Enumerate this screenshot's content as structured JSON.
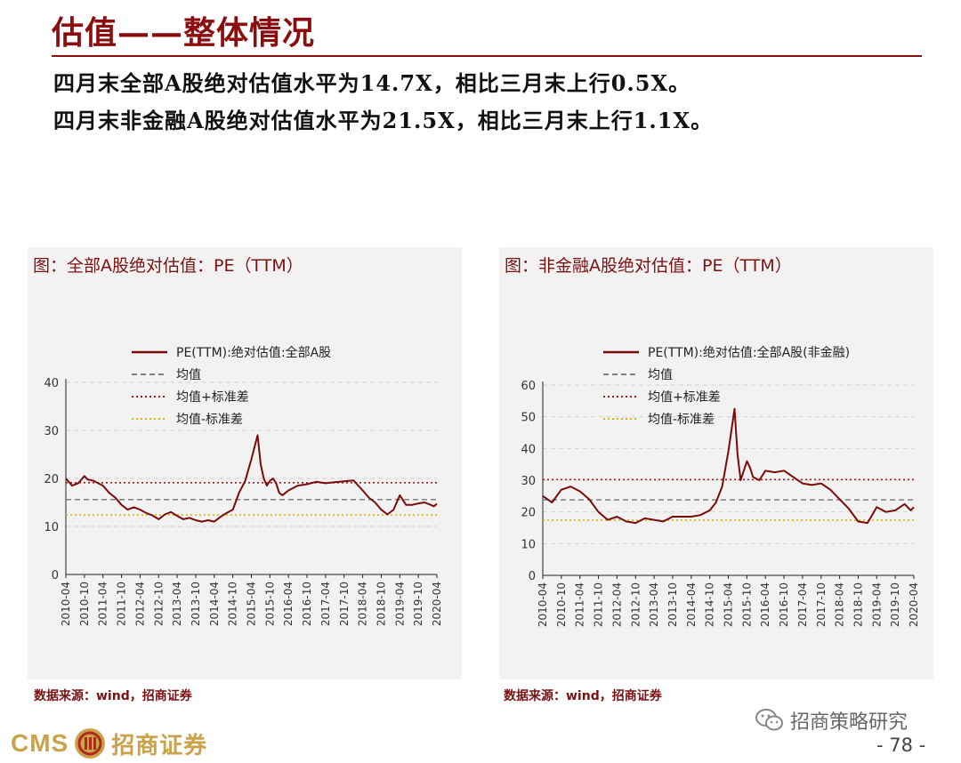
{
  "page": {
    "title": "估值——整体情况",
    "summary_lines": [
      "四月末全部A股绝对估值水平为14.7X，相比三月末上行0.5X。",
      "四月末非金融A股绝对估值水平为21.5X，相比三月末上行1.1X。"
    ],
    "sources": [
      "数据来源：wind，招商证券",
      "数据来源：wind，招商证券"
    ],
    "logo": {
      "cms": "CMS",
      "name": "招商证券"
    },
    "wechat_label": "招商策略研究",
    "page_number": "- 78 -"
  },
  "colors": {
    "brand_red": "#8b0d0d",
    "series_line": "#7b0b0b",
    "mean_line": "#808080",
    "upper_band": "#a01c1c",
    "lower_band": "#e0b400",
    "grid": "#d3d3d3",
    "panel_bg": "#f2f2f2",
    "logo_gold": "#c9a24a"
  },
  "icons": {
    "wechat": "wechat-icon",
    "logo_mark": "cms-logo-mark-icon"
  },
  "chart_data": [
    {
      "type": "line",
      "title": "图：全部A股绝对估值：PE（TTM）",
      "ylim": [
        0,
        40
      ],
      "yticks": [
        0,
        10,
        20,
        30,
        40
      ],
      "x_range": [
        "2010-04",
        "2020-04"
      ],
      "xticks": [
        "2010-04",
        "2010-10",
        "2011-04",
        "2011-10",
        "2012-04",
        "2012-10",
        "2013-04",
        "2013-10",
        "2014-04",
        "2014-10",
        "2015-04",
        "2015-10",
        "2016-04",
        "2016-10",
        "2017-04",
        "2017-10",
        "2018-04",
        "2018-10",
        "2019-04",
        "2019-10",
        "2020-04"
      ],
      "grid": true,
      "legend_position": "top-center",
      "series": [
        {
          "name": "PE(TTM):绝对估值:全部A股",
          "style": "solid",
          "x": [
            "2010-04",
            "2010-06",
            "2010-08",
            "2010-10",
            "2010-11",
            "2011-01",
            "2011-04",
            "2011-06",
            "2011-08",
            "2011-10",
            "2011-12",
            "2012-02",
            "2012-04",
            "2012-06",
            "2012-08",
            "2012-10",
            "2012-12",
            "2013-02",
            "2013-04",
            "2013-06",
            "2013-08",
            "2013-10",
            "2013-12",
            "2014-02",
            "2014-04",
            "2014-06",
            "2014-08",
            "2014-10",
            "2014-12",
            "2015-02",
            "2015-04",
            "2015-06",
            "2015-07",
            "2015-08",
            "2015-09",
            "2015-10",
            "2015-11",
            "2015-12",
            "2016-01",
            "2016-02",
            "2016-04",
            "2016-07",
            "2016-10",
            "2017-01",
            "2017-04",
            "2017-07",
            "2017-10",
            "2018-01",
            "2018-04",
            "2018-06",
            "2018-08",
            "2018-10",
            "2018-12",
            "2019-02",
            "2019-04",
            "2019-06",
            "2019-08",
            "2019-10",
            "2019-12",
            "2020-02",
            "2020-03",
            "2020-04"
          ],
          "y": [
            20,
            18.5,
            19,
            20.5,
            19.8,
            19.5,
            18.5,
            17,
            16,
            14.5,
            13.5,
            14,
            13.5,
            12.8,
            12.3,
            11.5,
            12.5,
            13,
            12.2,
            11.5,
            11.8,
            11.3,
            11,
            11.3,
            11,
            12,
            12.8,
            13.5,
            17,
            19.5,
            24,
            29,
            23,
            20,
            18.5,
            19.5,
            20,
            19,
            17,
            16.5,
            17.5,
            18.5,
            18.8,
            19.3,
            19,
            19.2,
            19.4,
            19.6,
            17.5,
            16,
            15,
            13.5,
            12.5,
            13.5,
            16.5,
            14.5,
            14.5,
            14.8,
            15,
            14.5,
            14.2,
            14.7
          ]
        },
        {
          "name": "均值",
          "style": "dashed",
          "value": 15.6
        },
        {
          "name": "均值+标准差",
          "style": "dotted",
          "value": 19.1
        },
        {
          "name": "均值-标准差",
          "style": "dotted",
          "value": 12.4
        }
      ]
    },
    {
      "type": "line",
      "title": "图：非金融A股绝对估值：PE（TTM）",
      "ylim": [
        0,
        60
      ],
      "yticks": [
        0,
        10,
        20,
        30,
        40,
        50,
        60
      ],
      "x_range": [
        "2010-04",
        "2020-04"
      ],
      "xticks": [
        "2010-04",
        "2010-10",
        "2011-04",
        "2011-10",
        "2012-04",
        "2012-10",
        "2013-04",
        "2013-10",
        "2014-04",
        "2014-10",
        "2015-04",
        "2015-10",
        "2016-04",
        "2016-10",
        "2017-04",
        "2017-10",
        "2018-04",
        "2018-10",
        "2019-04",
        "2019-10",
        "2020-04"
      ],
      "grid": true,
      "legend_position": "top-center",
      "series": [
        {
          "name": "PE(TTM):绝对估值:全部A股(非金融)",
          "style": "solid",
          "x": [
            "2010-04",
            "2010-07",
            "2010-10",
            "2011-01",
            "2011-04",
            "2011-07",
            "2011-10",
            "2012-01",
            "2012-04",
            "2012-07",
            "2012-10",
            "2013-01",
            "2013-04",
            "2013-07",
            "2013-10",
            "2014-01",
            "2014-04",
            "2014-07",
            "2014-10",
            "2014-12",
            "2015-02",
            "2015-04",
            "2015-06",
            "2015-07",
            "2015-08",
            "2015-09",
            "2015-10",
            "2015-11",
            "2015-12",
            "2016-02",
            "2016-04",
            "2016-07",
            "2016-10",
            "2017-01",
            "2017-04",
            "2017-07",
            "2017-10",
            "2018-01",
            "2018-04",
            "2018-07",
            "2018-10",
            "2019-01",
            "2019-04",
            "2019-07",
            "2019-10",
            "2020-01",
            "2020-03",
            "2020-04"
          ],
          "y": [
            25,
            23,
            27,
            28,
            26.5,
            24,
            20,
            17.5,
            18.5,
            17,
            16.5,
            18,
            17.5,
            17,
            18.5,
            18.5,
            18.5,
            19,
            20.5,
            23,
            28,
            39,
            52.5,
            38,
            30,
            33,
            36,
            34,
            31,
            30,
            33,
            32.5,
            33,
            31,
            29,
            28.5,
            29,
            27,
            24,
            21,
            17,
            16.5,
            21.5,
            20,
            20.5,
            22.5,
            20.5,
            21.5
          ]
        },
        {
          "name": "均值",
          "style": "dashed",
          "value": 23.8
        },
        {
          "name": "均值+标准差",
          "style": "dotted",
          "value": 30.2
        },
        {
          "name": "均值-标准差",
          "style": "dotted",
          "value": 17.4
        }
      ]
    }
  ]
}
